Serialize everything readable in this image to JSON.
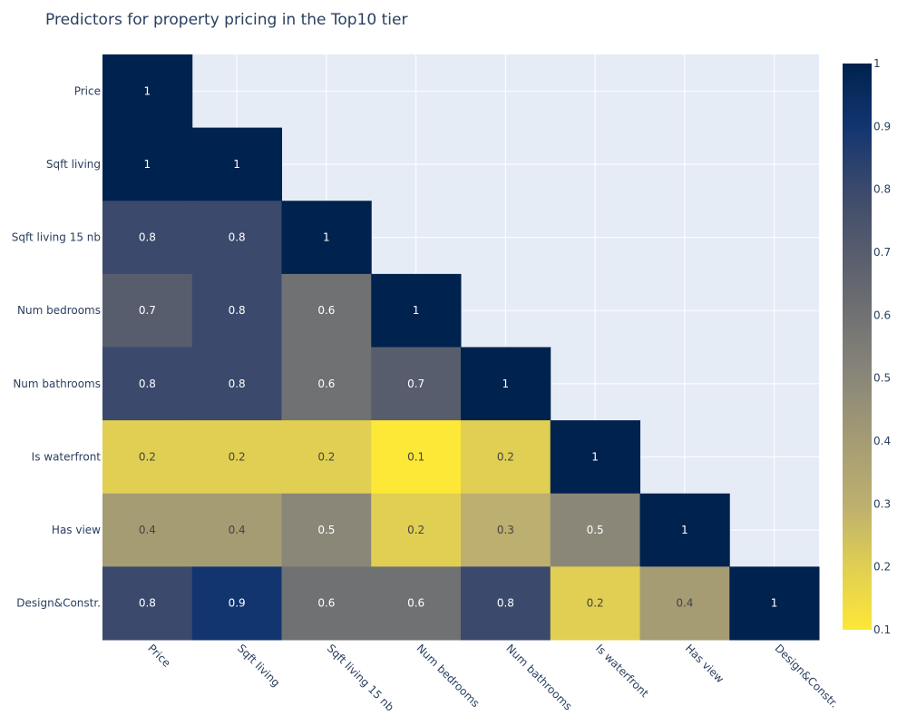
{
  "chart_data": {
    "type": "heatmap",
    "title": "Predictors for property pricing in the Top10 tier",
    "labels": [
      "Price",
      "Sqft living",
      "Sqft living 15 nb",
      "Num bedrooms",
      "Num bathrooms",
      "Is waterfront",
      "Has view",
      "Design&Constr."
    ],
    "values": [
      [
        1,
        null,
        null,
        null,
        null,
        null,
        null,
        null
      ],
      [
        1,
        1,
        null,
        null,
        null,
        null,
        null,
        null
      ],
      [
        0.8,
        0.8,
        1,
        null,
        null,
        null,
        null,
        null
      ],
      [
        0.7,
        0.8,
        0.6,
        1,
        null,
        null,
        null,
        null
      ],
      [
        0.8,
        0.8,
        0.6,
        0.7,
        1,
        null,
        null,
        null
      ],
      [
        0.2,
        0.2,
        0.2,
        0.1,
        0.2,
        1,
        null,
        null
      ],
      [
        0.4,
        0.4,
        0.5,
        0.2,
        0.3,
        0.5,
        1,
        null
      ],
      [
        0.8,
        0.9,
        0.6,
        0.6,
        0.8,
        0.2,
        0.4,
        1
      ]
    ],
    "colorscale": "cividis (reversed)",
    "colorscale_stops": [
      "#fde737",
      "#e0cf52",
      "#bcaf6f",
      "#a59c74",
      "#8a8779",
      "#707173",
      "#575d6d",
      "#3b496c",
      "#123570",
      "#00224e"
    ],
    "zrange": [
      0.1,
      1
    ],
    "colorbar_ticks": [
      "0.1",
      "0.2",
      "0.3",
      "0.4",
      "0.5",
      "0.6",
      "0.7",
      "0.8",
      "0.9",
      "1"
    ],
    "x_tick_angle": 45,
    "plot_background": "#e5ecf6",
    "grid": true
  }
}
